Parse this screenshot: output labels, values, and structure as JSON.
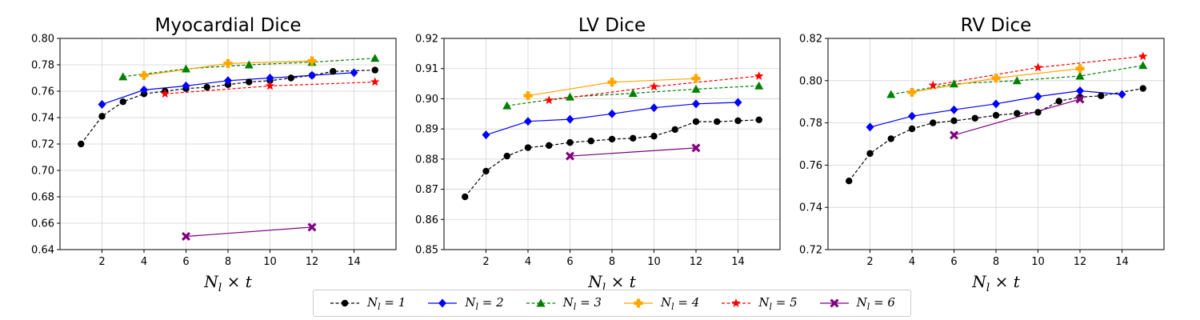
{
  "chart_data": [
    {
      "type": "line",
      "title": "Myocardial Dice",
      "xlabel": "N_l × t",
      "ylabel": "",
      "xlim": [
        0,
        16
      ],
      "ylim": [
        0.64,
        0.8
      ],
      "xticks": [
        2,
        4,
        6,
        8,
        10,
        12,
        14
      ],
      "yticks": [
        "0.64",
        "0.66",
        "0.68",
        "0.70",
        "0.72",
        "0.74",
        "0.76",
        "0.78",
        "0.80"
      ],
      "grid": true,
      "series": [
        {
          "name": "N_l = 1",
          "x": [
            1,
            2,
            3,
            4,
            5,
            6,
            7,
            8,
            9,
            10,
            11,
            12,
            13,
            15
          ],
          "values": [
            0.72,
            0.741,
            0.752,
            0.758,
            0.76,
            0.762,
            0.763,
            0.765,
            0.767,
            0.768,
            0.77,
            0.772,
            0.775,
            0.776
          ]
        },
        {
          "name": "N_l = 2",
          "x": [
            2,
            4,
            6,
            8,
            10,
            12,
            14
          ],
          "values": [
            0.75,
            0.761,
            0.764,
            0.768,
            0.77,
            0.772,
            0.774
          ]
        },
        {
          "name": "N_l = 3",
          "x": [
            3,
            6,
            9,
            12,
            15
          ],
          "values": [
            0.771,
            0.777,
            0.78,
            0.782,
            0.785
          ]
        },
        {
          "name": "N_l = 4",
          "x": [
            4,
            8,
            12
          ],
          "values": [
            0.772,
            0.781,
            0.783
          ]
        },
        {
          "name": "N_l = 5",
          "x": [
            5,
            10,
            15
          ],
          "values": [
            0.758,
            0.764,
            0.767
          ]
        },
        {
          "name": "N_l = 6",
          "x": [
            6,
            12
          ],
          "values": [
            0.65,
            0.657
          ]
        }
      ]
    },
    {
      "type": "line",
      "title": "LV Dice",
      "xlabel": "N_l × t",
      "ylabel": "",
      "xlim": [
        0,
        16
      ],
      "ylim": [
        0.85,
        0.92
      ],
      "xticks": [
        2,
        4,
        6,
        8,
        10,
        12,
        14
      ],
      "yticks": [
        "0.85",
        "0.86",
        "0.87",
        "0.88",
        "0.89",
        "0.90",
        "0.91",
        "0.92"
      ],
      "grid": true,
      "series": [
        {
          "name": "N_l = 1",
          "x": [
            1,
            2,
            3,
            4,
            5,
            6,
            7,
            8,
            9,
            10,
            11,
            12,
            13,
            14,
            15
          ],
          "values": [
            0.8675,
            0.876,
            0.881,
            0.8838,
            0.8845,
            0.8855,
            0.886,
            0.8866,
            0.8869,
            0.8876,
            0.8898,
            0.8924,
            0.8924,
            0.8927,
            0.893
          ]
        },
        {
          "name": "N_l = 2",
          "x": [
            2,
            4,
            6,
            8,
            10,
            12,
            14
          ],
          "values": [
            0.888,
            0.8925,
            0.8932,
            0.895,
            0.897,
            0.8983,
            0.8988
          ]
        },
        {
          "name": "N_l = 3",
          "x": [
            3,
            6,
            9,
            12,
            15
          ],
          "values": [
            0.8977,
            0.9006,
            0.9018,
            0.9032,
            0.9043
          ]
        },
        {
          "name": "N_l = 4",
          "x": [
            4,
            8,
            12
          ],
          "values": [
            0.901,
            0.9055,
            0.9067
          ]
        },
        {
          "name": "N_l = 5",
          "x": [
            5,
            10,
            15
          ],
          "values": [
            0.8995,
            0.904,
            0.9075
          ]
        },
        {
          "name": "N_l = 6",
          "x": [
            6,
            12
          ],
          "values": [
            0.881,
            0.8837
          ]
        }
      ]
    },
    {
      "type": "line",
      "title": "RV Dice",
      "xlabel": "N_l × t",
      "ylabel": "",
      "xlim": [
        0,
        16
      ],
      "ylim": [
        0.72,
        0.82
      ],
      "xticks": [
        2,
        4,
        6,
        8,
        10,
        12,
        14
      ],
      "yticks": [
        "0.72",
        "0.74",
        "0.76",
        "0.78",
        "0.80",
        "0.82"
      ],
      "grid": true,
      "series": [
        {
          "name": "N_l = 1",
          "x": [
            1,
            2,
            3,
            4,
            5,
            6,
            7,
            8,
            9,
            10,
            11,
            12,
            13,
            15
          ],
          "values": [
            0.7525,
            0.7655,
            0.7725,
            0.7772,
            0.78,
            0.781,
            0.7822,
            0.7836,
            0.7845,
            0.785,
            0.7903,
            0.7922,
            0.7928,
            0.7963
          ]
        },
        {
          "name": "N_l = 2",
          "x": [
            2,
            4,
            6,
            8,
            10,
            12,
            14
          ],
          "values": [
            0.778,
            0.7832,
            0.7862,
            0.789,
            0.7925,
            0.7952,
            0.7935
          ]
        },
        {
          "name": "N_l = 3",
          "x": [
            3,
            6,
            9,
            12,
            15
          ],
          "values": [
            0.7935,
            0.7985,
            0.8,
            0.8022,
            0.8072
          ]
        },
        {
          "name": "N_l = 4",
          "x": [
            4,
            8,
            12
          ],
          "values": [
            0.7945,
            0.8012,
            0.8057
          ]
        },
        {
          "name": "N_l = 5",
          "x": [
            5,
            10,
            15
          ],
          "values": [
            0.7978,
            0.8062,
            0.8115
          ]
        },
        {
          "name": "N_l = 6",
          "x": [
            6,
            12
          ],
          "values": [
            0.7742,
            0.7912
          ]
        }
      ]
    }
  ],
  "styles": [
    {
      "color": "#000000",
      "dashed": true,
      "marker": "circle"
    },
    {
      "color": "#0000ff",
      "dashed": false,
      "marker": "diamond"
    },
    {
      "color": "#008000",
      "dashed": true,
      "marker": "triangle"
    },
    {
      "color": "#ffa500",
      "dashed": false,
      "marker": "plus"
    },
    {
      "color": "#ff0000",
      "dashed": true,
      "marker": "star"
    },
    {
      "color": "#800080",
      "dashed": false,
      "marker": "x"
    }
  ],
  "legend": {
    "placement": "bottom-center",
    "items": [
      {
        "prefix": "N",
        "sub": "l",
        "suffix": " = 1"
      },
      {
        "prefix": "N",
        "sub": "l",
        "suffix": " = 2"
      },
      {
        "prefix": "N",
        "sub": "l",
        "suffix": " = 3"
      },
      {
        "prefix": "N",
        "sub": "l",
        "suffix": " = 4"
      },
      {
        "prefix": "N",
        "sub": "l",
        "suffix": " = 5"
      },
      {
        "prefix": "N",
        "sub": "l",
        "suffix": " = 6"
      }
    ]
  }
}
